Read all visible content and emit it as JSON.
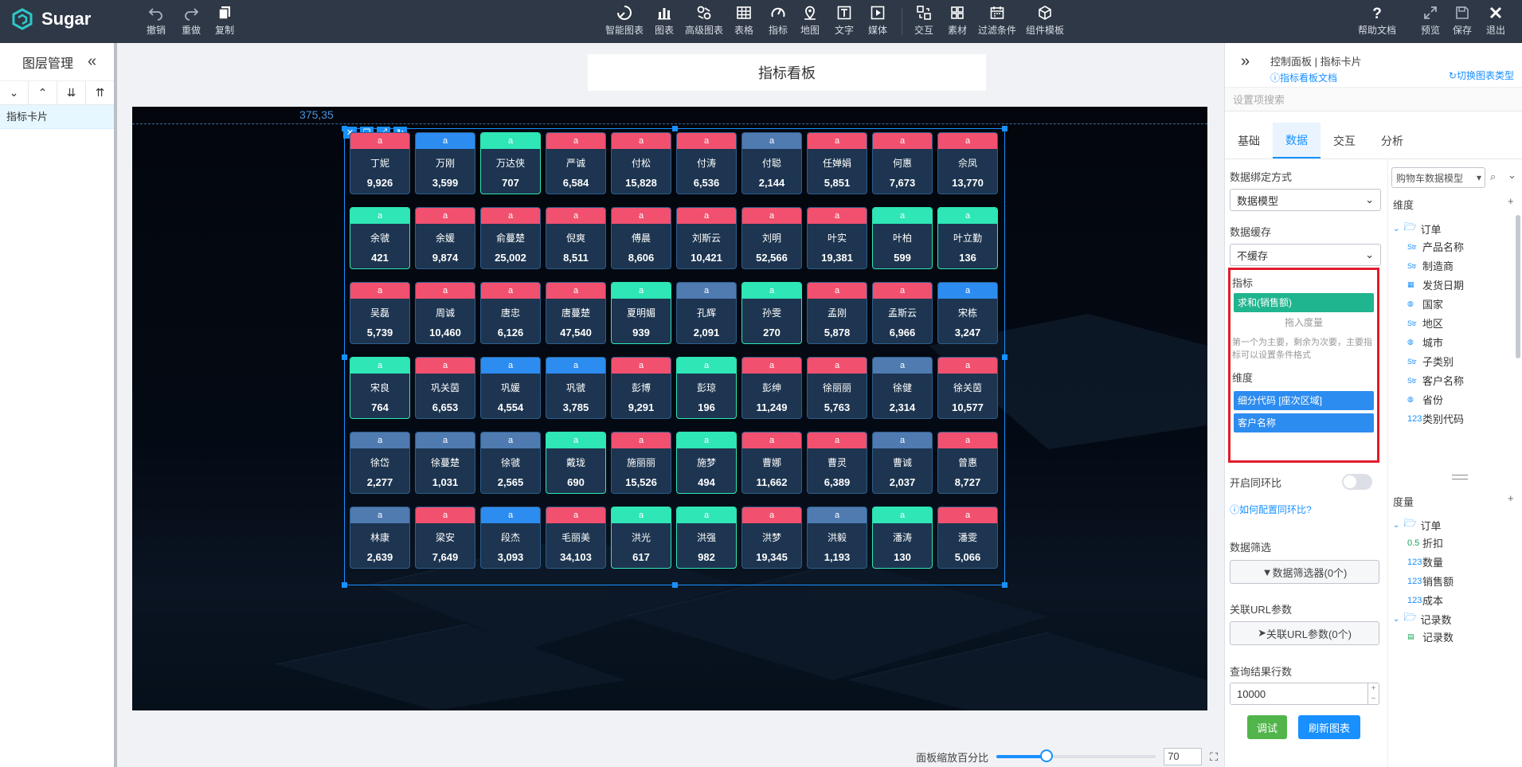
{
  "app": {
    "name": "Sugar"
  },
  "toolbar": {
    "undo": "撤销",
    "redo": "重做",
    "copy": "复制",
    "items": [
      "智能图表",
      "图表",
      "高级图表",
      "表格",
      "指标",
      "地图",
      "文字",
      "媒体",
      "交互",
      "素材",
      "过滤条件",
      "组件模板"
    ],
    "right": [
      "帮助文档",
      "预览",
      "保存",
      "退出"
    ]
  },
  "layers": {
    "title": "图层管理",
    "item": "指标卡片"
  },
  "board": {
    "title": "指标看板",
    "coords": "375,35"
  },
  "cards": [
    {
      "tag": "a",
      "name": "丁妮",
      "value": "9,926",
      "color": "red"
    },
    {
      "tag": "a",
      "name": "万刚",
      "value": "3,599",
      "color": "blue"
    },
    {
      "tag": "a",
      "name": "万达侠",
      "value": "707",
      "color": "green"
    },
    {
      "tag": "a",
      "name": "严诚",
      "value": "6,584",
      "color": "red"
    },
    {
      "tag": "a",
      "name": "付松",
      "value": "15,828",
      "color": "red"
    },
    {
      "tag": "a",
      "name": "付涛",
      "value": "6,536",
      "color": "red"
    },
    {
      "tag": "a",
      "name": "付聪",
      "value": "2,144",
      "color": "steel"
    },
    {
      "tag": "a",
      "name": "任婵娟",
      "value": "5,851",
      "color": "red"
    },
    {
      "tag": "a",
      "name": "何惠",
      "value": "7,673",
      "color": "red"
    },
    {
      "tag": "a",
      "name": "佘凤",
      "value": "13,770",
      "color": "red"
    },
    {
      "tag": "a",
      "name": "余虢",
      "value": "421",
      "color": "green"
    },
    {
      "tag": "a",
      "name": "余媛",
      "value": "9,874",
      "color": "red"
    },
    {
      "tag": "a",
      "name": "俞蔓楚",
      "value": "25,002",
      "color": "red"
    },
    {
      "tag": "a",
      "name": "倪爽",
      "value": "8,511",
      "color": "red"
    },
    {
      "tag": "a",
      "name": "傅晨",
      "value": "8,606",
      "color": "red"
    },
    {
      "tag": "a",
      "name": "刘斯云",
      "value": "10,421",
      "color": "red"
    },
    {
      "tag": "a",
      "name": "刘明",
      "value": "52,566",
      "color": "red"
    },
    {
      "tag": "a",
      "name": "叶实",
      "value": "19,381",
      "color": "red"
    },
    {
      "tag": "a",
      "name": "叶柏",
      "value": "599",
      "color": "green"
    },
    {
      "tag": "a",
      "name": "叶立勤",
      "value": "136",
      "color": "green"
    },
    {
      "tag": "a",
      "name": "吴磊",
      "value": "5,739",
      "color": "red"
    },
    {
      "tag": "a",
      "name": "周诚",
      "value": "10,460",
      "color": "red"
    },
    {
      "tag": "a",
      "name": "唐忠",
      "value": "6,126",
      "color": "red"
    },
    {
      "tag": "a",
      "name": "唐蔓楚",
      "value": "47,540",
      "color": "red"
    },
    {
      "tag": "a",
      "name": "夏明媚",
      "value": "939",
      "color": "green"
    },
    {
      "tag": "a",
      "name": "孔辉",
      "value": "2,091",
      "color": "steel"
    },
    {
      "tag": "a",
      "name": "孙雯",
      "value": "270",
      "color": "green"
    },
    {
      "tag": "a",
      "name": "孟刚",
      "value": "5,878",
      "color": "red"
    },
    {
      "tag": "a",
      "name": "孟斯云",
      "value": "6,966",
      "color": "red"
    },
    {
      "tag": "a",
      "name": "宋栋",
      "value": "3,247",
      "color": "blue"
    },
    {
      "tag": "a",
      "name": "宋良",
      "value": "764",
      "color": "green"
    },
    {
      "tag": "a",
      "name": "巩关茵",
      "value": "6,653",
      "color": "red"
    },
    {
      "tag": "a",
      "name": "巩媛",
      "value": "4,554",
      "color": "blue"
    },
    {
      "tag": "a",
      "name": "巩虢",
      "value": "3,785",
      "color": "blue"
    },
    {
      "tag": "a",
      "name": "彭博",
      "value": "9,291",
      "color": "red"
    },
    {
      "tag": "a",
      "name": "彭琼",
      "value": "196",
      "color": "green"
    },
    {
      "tag": "a",
      "name": "彭绅",
      "value": "11,249",
      "color": "red"
    },
    {
      "tag": "a",
      "name": "徐丽丽",
      "value": "5,763",
      "color": "red"
    },
    {
      "tag": "a",
      "name": "徐健",
      "value": "2,314",
      "color": "steel"
    },
    {
      "tag": "a",
      "name": "徐关茵",
      "value": "10,577",
      "color": "red"
    },
    {
      "tag": "a",
      "name": "徐岱",
      "value": "2,277",
      "color": "steel"
    },
    {
      "tag": "a",
      "name": "徐蔓楚",
      "value": "1,031",
      "color": "steel"
    },
    {
      "tag": "a",
      "name": "徐虢",
      "value": "2,565",
      "color": "steel"
    },
    {
      "tag": "a",
      "name": "戴珑",
      "value": "690",
      "color": "green"
    },
    {
      "tag": "a",
      "name": "施丽丽",
      "value": "15,526",
      "color": "red"
    },
    {
      "tag": "a",
      "name": "施梦",
      "value": "494",
      "color": "green"
    },
    {
      "tag": "a",
      "name": "曹娜",
      "value": "11,662",
      "color": "red"
    },
    {
      "tag": "a",
      "name": "曹灵",
      "value": "6,389",
      "color": "red"
    },
    {
      "tag": "a",
      "name": "曹诚",
      "value": "2,037",
      "color": "steel"
    },
    {
      "tag": "a",
      "name": "曾惠",
      "value": "8,727",
      "color": "red"
    },
    {
      "tag": "a",
      "name": "林康",
      "value": "2,639",
      "color": "steel"
    },
    {
      "tag": "a",
      "name": "梁安",
      "value": "7,649",
      "color": "red"
    },
    {
      "tag": "a",
      "name": "段杰",
      "value": "3,093",
      "color": "blue"
    },
    {
      "tag": "a",
      "name": "毛丽美",
      "value": "34,103",
      "color": "red"
    },
    {
      "tag": "a",
      "name": "洪光",
      "value": "617",
      "color": "green"
    },
    {
      "tag": "a",
      "name": "洪强",
      "value": "982",
      "color": "green"
    },
    {
      "tag": "a",
      "name": "洪梦",
      "value": "19,345",
      "color": "red"
    },
    {
      "tag": "a",
      "name": "洪毅",
      "value": "1,193",
      "color": "steel"
    },
    {
      "tag": "a",
      "name": "潘涛",
      "value": "130",
      "color": "green"
    },
    {
      "tag": "a",
      "name": "潘雯",
      "value": "5,066",
      "color": "red"
    }
  ],
  "colors": {
    "red": "#f2506f",
    "blue": "#2d8cf0",
    "green": "#2ee6b6",
    "steel": "#4f7bb0",
    "accent": "#1890ff",
    "highlight": "#e21c2b"
  },
  "zoom": {
    "label": "面板缩放百分比",
    "value": "70",
    "percent": 70
  },
  "panel": {
    "path": "控制面板 | 指标卡片",
    "doc_link": "指标看板文档",
    "switch_type": "切换图表类型",
    "search_placeholder": "设置项搜索",
    "tabs": [
      "基础",
      "数据",
      "交互",
      "分析"
    ],
    "active_tab": "数据",
    "bind_label": "数据绑定方式",
    "bind_value": "数据模型",
    "cache_label": "数据缓存",
    "cache_value": "不缓存",
    "metric_label": "指标",
    "metric_pill": "求和(销售额)",
    "metric_drop": "拖入度量",
    "metric_hint": "第一个为主要，剩余为次要，主要指标可以设置条件格式",
    "dim_label": "维度",
    "dim_pills": [
      "细分代码 [座次区域]",
      "客户名称"
    ],
    "yoy_label": "开启同环比",
    "yoy_link": "如何配置同环比?",
    "filter_label": "数据筛选",
    "filter_btn": "数据筛选器(0个)",
    "url_label": "关联URL参数",
    "url_btn": "关联URL参数(0个)",
    "rows_label": "查询结果行数",
    "rows_value": "10000",
    "debug_btn": "调试",
    "refresh_btn": "刷新图表"
  },
  "model": {
    "select": "购物车数据模型",
    "dim_title": "维度",
    "dim_folder": "订单",
    "dim_fields": [
      {
        "icon": "Str",
        "name": "产品名称"
      },
      {
        "icon": "Str",
        "name": "制造商"
      },
      {
        "icon": "cal",
        "name": "发货日期"
      },
      {
        "icon": "globe",
        "name": "国家"
      },
      {
        "icon": "Str",
        "name": "地区"
      },
      {
        "icon": "globe",
        "name": "城市"
      },
      {
        "icon": "Str",
        "name": "子类别"
      },
      {
        "icon": "Str",
        "name": "客户名称"
      },
      {
        "icon": "globe",
        "name": "省份"
      },
      {
        "icon": "123",
        "name": "类别代码"
      }
    ],
    "measure_title": "度量",
    "measure_folder": "订单",
    "measure_fields": [
      {
        "icon": "0.5",
        "name": "折扣"
      },
      {
        "icon": "123",
        "name": "数量"
      },
      {
        "icon": "123",
        "name": "销售额"
      },
      {
        "icon": "123",
        "name": "成本"
      }
    ],
    "count_folder": "记录数",
    "count_field": "记录数"
  }
}
